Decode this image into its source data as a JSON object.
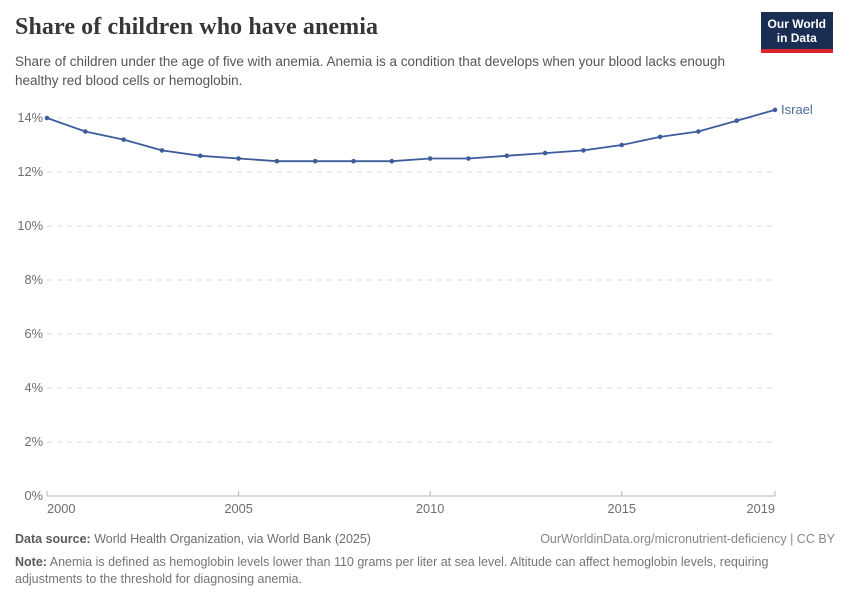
{
  "header": {
    "title": "Share of children who have anemia",
    "subtitle": "Share of children under the age of five with anemia. Anemia is a condition that develops when your blood lacks enough healthy red blood cells or hemoglobin.",
    "logo": {
      "line1": "Our World",
      "line2": "in Data",
      "bg_color": "#1a2e54",
      "accent_color": "#d8252e"
    }
  },
  "chart_data": {
    "type": "line",
    "title": "Share of children who have anemia",
    "x": [
      2000,
      2001,
      2002,
      2003,
      2004,
      2005,
      2006,
      2007,
      2008,
      2009,
      2010,
      2011,
      2012,
      2013,
      2014,
      2015,
      2016,
      2017,
      2018,
      2019
    ],
    "series": [
      {
        "name": "Israel",
        "color": "#3d5c9c",
        "label_color": "#4c6a9c",
        "values": [
          14.0,
          13.5,
          13.2,
          12.8,
          12.6,
          12.5,
          12.4,
          12.4,
          12.4,
          12.4,
          12.5,
          12.5,
          12.6,
          12.7,
          12.8,
          13.0,
          13.3,
          13.5,
          13.9,
          14.3
        ]
      }
    ],
    "xlabel": "",
    "ylabel": "",
    "xlim": [
      2000,
      2019
    ],
    "ylim": [
      0,
      14
    ],
    "x_ticks": [
      2000,
      2005,
      2010,
      2015,
      2019
    ],
    "y_ticks": [
      0,
      2,
      4,
      6,
      8,
      10,
      12,
      14
    ],
    "y_tick_suffix": "%",
    "grid": "horizontal-dashed",
    "legend": "inline-end-label",
    "colors": {
      "gridline": "#d9d9d9",
      "axis": "#b3b3b3",
      "tick_label": "#6e6e6e"
    }
  },
  "footer": {
    "source_label": "Data source:",
    "source_text": "World Health Organization, via World Bank (2025)",
    "attribution": "OurWorldinData.org/micronutrient-deficiency | CC BY",
    "note_label": "Note:",
    "note_text": "Anemia is defined as hemoglobin levels lower than 110 grams per liter at sea level. Altitude can affect hemoglobin levels, requiring adjustments to the threshold for diagnosing anemia."
  }
}
